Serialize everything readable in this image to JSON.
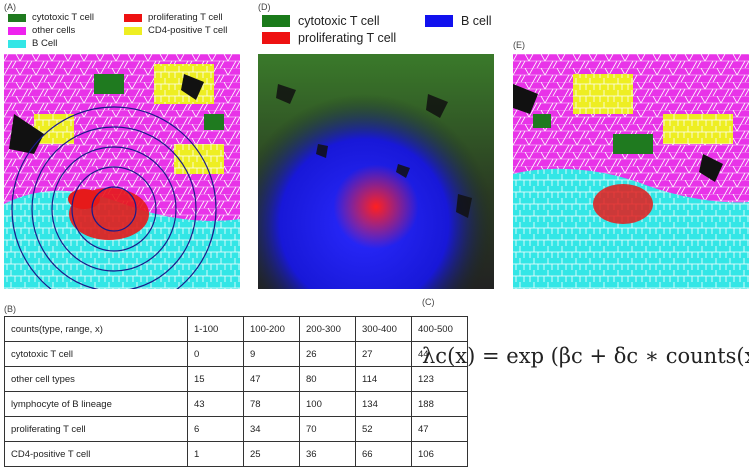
{
  "panels": {
    "A": "(A)",
    "B": "(B)",
    "C": "(C)",
    "D": "(D)",
    "E": "(E)"
  },
  "legend_A": [
    {
      "label": "cytotoxic T cell",
      "color": "#1f7a1f"
    },
    {
      "label": "proliferating T cell",
      "color": "#ee1111"
    },
    {
      "label": "other cells",
      "color": "#ee22ee"
    },
    {
      "label": "CD4-positive T cell",
      "color": "#eeee22"
    },
    {
      "label": "B Cell",
      "color": "#33e6e6"
    }
  ],
  "legend_D": [
    {
      "label": "cytotoxic T cell",
      "color": "#1a7a1a"
    },
    {
      "label": "B cell",
      "color": "#1111ee"
    },
    {
      "label": "proliferating T cell",
      "color": "#ee1111"
    }
  ],
  "table": {
    "header": [
      "counts(type, range, x)",
      "1-100",
      "100-200",
      "200-300",
      "300-400",
      "400-500"
    ],
    "rows": [
      [
        "cytotoxic T cell",
        "0",
        "9",
        "26",
        "27",
        "44"
      ],
      [
        "other cell types",
        "15",
        "47",
        "80",
        "114",
        "123"
      ],
      [
        "lymphocyte of B lineage",
        "43",
        "78",
        "100",
        "134",
        "188"
      ],
      [
        "proliferating T cell",
        "6",
        "34",
        "70",
        "52",
        "47"
      ],
      [
        "CD4-positive T cell",
        "1",
        "25",
        "36",
        "66",
        "106"
      ]
    ]
  },
  "formula": {
    "lhs": "λc(x)",
    "rhs": "exp (βc + δc ∗ counts(x))"
  }
}
